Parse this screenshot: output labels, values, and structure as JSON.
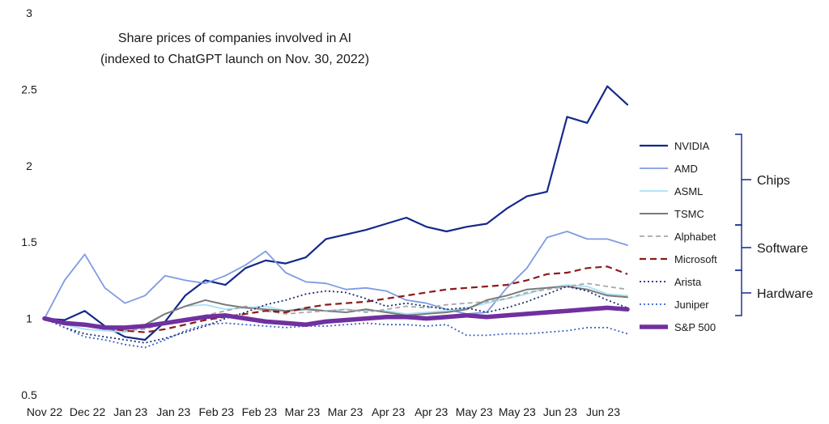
{
  "chart_data": {
    "type": "line",
    "title": "Share prices of companies involved in AI",
    "subtitle": "(indexed to ChatGPT launch on Nov. 30, 2022)",
    "xlabel": "",
    "ylabel": "",
    "ylim": [
      0.5,
      3
    ],
    "yticks": [
      "3",
      "2.5",
      "2",
      "1.5",
      "1",
      "0.5"
    ],
    "ytick_values": [
      3,
      2.5,
      2,
      1.5,
      1,
      0.5
    ],
    "xtick_labels": [
      "Nov 22",
      "Dec 22",
      "Jan 23",
      "Jan 23",
      "Feb 23",
      "Feb 23",
      "Mar 23",
      "Mar 23",
      "Apr 23",
      "Apr 23",
      "May 23",
      "May 23",
      "Jun 23",
      "Jun 23"
    ],
    "x": [
      "2022-11-30",
      "2022-12-07",
      "2022-12-14",
      "2022-12-21",
      "2022-12-28",
      "2023-01-04",
      "2023-01-11",
      "2023-01-18",
      "2023-01-25",
      "2023-02-01",
      "2023-02-08",
      "2023-02-15",
      "2023-02-22",
      "2023-03-01",
      "2023-03-08",
      "2023-03-15",
      "2023-03-22",
      "2023-03-29",
      "2023-04-05",
      "2023-04-12",
      "2023-04-19",
      "2023-04-26",
      "2023-05-03",
      "2023-05-10",
      "2023-05-17",
      "2023-05-24",
      "2023-05-31",
      "2023-06-07",
      "2023-06-14",
      "2023-06-21"
    ],
    "series": [
      {
        "name": "NVIDIA",
        "color": "#13298a",
        "dash": "solid",
        "width": 2.2,
        "values": [
          1.0,
          0.99,
          1.05,
          0.95,
          0.88,
          0.86,
          0.98,
          1.15,
          1.25,
          1.22,
          1.33,
          1.38,
          1.36,
          1.4,
          1.52,
          1.55,
          1.58,
          1.62,
          1.66,
          1.6,
          1.57,
          1.6,
          1.62,
          1.72,
          1.8,
          1.83,
          2.32,
          2.28,
          2.52,
          2.4
        ]
      },
      {
        "name": "AMD",
        "color": "#7f9be2",
        "dash": "solid",
        "width": 1.8,
        "values": [
          1.0,
          1.25,
          1.42,
          1.2,
          1.1,
          1.15,
          1.28,
          1.25,
          1.23,
          1.28,
          1.35,
          1.44,
          1.3,
          1.24,
          1.23,
          1.19,
          1.2,
          1.18,
          1.12,
          1.1,
          1.06,
          1.03,
          1.04,
          1.2,
          1.33,
          1.53,
          1.57,
          1.52,
          1.52,
          1.48
        ]
      },
      {
        "name": "ASML",
        "color": "#a9e1f6",
        "dash": "solid",
        "width": 1.8,
        "values": [
          1.0,
          0.96,
          0.93,
          0.92,
          0.91,
          0.95,
          1.03,
          1.08,
          1.09,
          1.06,
          1.07,
          1.08,
          1.05,
          1.07,
          1.05,
          1.06,
          1.05,
          1.05,
          1.03,
          1.04,
          1.05,
          1.07,
          1.1,
          1.13,
          1.16,
          1.2,
          1.22,
          1.21,
          1.16,
          1.15
        ]
      },
      {
        "name": "TSMC",
        "color": "#7a7a7a",
        "dash": "solid",
        "width": 2,
        "values": [
          1.0,
          0.97,
          0.95,
          0.94,
          0.93,
          0.96,
          1.03,
          1.08,
          1.12,
          1.09,
          1.07,
          1.06,
          1.05,
          1.06,
          1.05,
          1.04,
          1.06,
          1.04,
          1.02,
          1.03,
          1.04,
          1.06,
          1.12,
          1.15,
          1.19,
          1.2,
          1.21,
          1.19,
          1.15,
          1.14
        ]
      },
      {
        "name": "Alphabet",
        "color": "#a8a8a8",
        "dash": "6,4",
        "width": 1.8,
        "values": [
          1.0,
          0.96,
          0.95,
          0.93,
          0.92,
          0.93,
          0.97,
          0.99,
          1.02,
          1.05,
          1.08,
          1.05,
          1.03,
          1.04,
          1.05,
          1.06,
          1.04,
          1.06,
          1.08,
          1.07,
          1.09,
          1.1,
          1.11,
          1.13,
          1.17,
          1.19,
          1.21,
          1.23,
          1.21,
          1.19
        ]
      },
      {
        "name": "Microsoft",
        "color": "#8b1a1a",
        "dash": "8,5",
        "width": 2.2,
        "values": [
          1.0,
          0.97,
          0.96,
          0.94,
          0.92,
          0.91,
          0.93,
          0.96,
          0.99,
          1.01,
          1.03,
          1.05,
          1.04,
          1.07,
          1.09,
          1.1,
          1.11,
          1.13,
          1.15,
          1.17,
          1.19,
          1.2,
          1.21,
          1.22,
          1.25,
          1.29,
          1.3,
          1.33,
          1.34,
          1.29
        ]
      },
      {
        "name": "Arista",
        "color": "#1c2b6f",
        "dash": "2,3",
        "width": 1.8,
        "values": [
          1.0,
          0.94,
          0.9,
          0.88,
          0.86,
          0.84,
          0.87,
          0.91,
          0.95,
          1.0,
          1.04,
          1.09,
          1.12,
          1.16,
          1.18,
          1.17,
          1.13,
          1.08,
          1.1,
          1.08,
          1.06,
          1.07,
          1.04,
          1.07,
          1.11,
          1.16,
          1.21,
          1.18,
          1.12,
          1.07
        ]
      },
      {
        "name": "Juniper",
        "color": "#3a63c8",
        "dash": "2,3",
        "width": 1.8,
        "values": [
          1.0,
          0.94,
          0.88,
          0.86,
          0.83,
          0.81,
          0.86,
          0.92,
          0.96,
          0.97,
          0.96,
          0.95,
          0.94,
          0.95,
          0.95,
          0.96,
          0.97,
          0.96,
          0.96,
          0.95,
          0.96,
          0.89,
          0.89,
          0.9,
          0.9,
          0.91,
          0.92,
          0.94,
          0.94,
          0.9
        ]
      },
      {
        "name": "S&P 500",
        "color": "#7030a0",
        "dash": "solid",
        "width": 5.5,
        "values": [
          1.0,
          0.97,
          0.96,
          0.94,
          0.94,
          0.95,
          0.97,
          0.99,
          1.01,
          1.02,
          1.0,
          0.98,
          0.97,
          0.96,
          0.98,
          0.99,
          1.0,
          1.01,
          1.01,
          1.0,
          1.01,
          1.02,
          1.01,
          1.02,
          1.03,
          1.04,
          1.05,
          1.06,
          1.07,
          1.06
        ]
      }
    ],
    "legend_groups": [
      {
        "label": "Chips",
        "members": [
          "NVIDIA",
          "AMD",
          "ASML",
          "TSMC"
        ]
      },
      {
        "label": "Software",
        "members": [
          "Alphabet",
          "Microsoft"
        ]
      },
      {
        "label": "Hardware",
        "members": [
          "Arista",
          "Juniper"
        ]
      }
    ],
    "legend": "right",
    "grid": false
  }
}
